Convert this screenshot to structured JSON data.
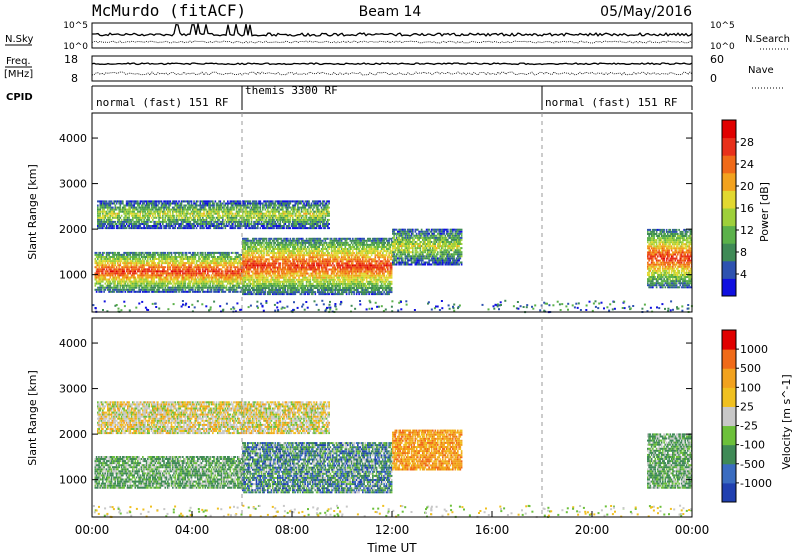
{
  "header": {
    "station": "McMurdo (fitACF)",
    "beam": "Beam 14",
    "date": "05/May/2016"
  },
  "strip": {
    "nsky_label": "N.Sky",
    "nsky_ticks": [
      "10^5",
      "10^0"
    ],
    "nsearch_label": "N.Search",
    "nsearch_ticks": [
      "10^5",
      "10^0"
    ],
    "freq_label": "Freq.",
    "freq_unit": "[MHz]",
    "freq_ticks": [
      "18",
      "8"
    ],
    "nave_label": "Nave",
    "nave_ticks": [
      "60",
      "0"
    ],
    "cpid_label": "CPID",
    "cpid_modes": [
      {
        "label": "normal (fast) 151 RF",
        "start_hour": 0,
        "end_hour": 6
      },
      {
        "label": "themis 3300 RF",
        "start_hour": 6,
        "end_hour": 18
      },
      {
        "label": "normal (fast) 151 RF",
        "start_hour": 18,
        "end_hour": 24
      }
    ]
  },
  "chart_data": [
    {
      "type": "heatmap",
      "title": "",
      "xlabel": "",
      "ylabel": "Slant Range [km]",
      "xlim": [
        0,
        24
      ],
      "ylim": [
        180,
        4550
      ],
      "yticks": [
        "1000",
        "2000",
        "3000",
        "4000"
      ],
      "colorbar": {
        "label": "Power [dB]",
        "ticks": [
          "4",
          "8",
          "12",
          "16",
          "20",
          "24",
          "28"
        ],
        "range": [
          0,
          30
        ],
        "colors": [
          "#1010e0",
          "#2e52b0",
          "#3f8a56",
          "#5bb14a",
          "#9ed03a",
          "#e2d830",
          "#f2a21e",
          "#f06a18",
          "#e8301a",
          "#e00000"
        ]
      },
      "regions": [
        {
          "t0": 0.1,
          "t1": 6.0,
          "r0": 600,
          "r1": 1500,
          "level": "strong"
        },
        {
          "t0": 6.0,
          "t1": 12.0,
          "r0": 550,
          "r1": 1800,
          "level": "strong"
        },
        {
          "t0": 0.2,
          "t1": 9.5,
          "r0": 2000,
          "r1": 2600,
          "level": "medium"
        },
        {
          "t0": 12.0,
          "t1": 14.8,
          "r0": 1200,
          "r1": 2000,
          "level": "medium"
        },
        {
          "t0": 22.2,
          "t1": 24.0,
          "r0": 700,
          "r1": 2000,
          "level": "strong"
        }
      ]
    },
    {
      "type": "heatmap",
      "title": "",
      "xlabel": "Time UT",
      "ylabel": "Slant Range [km]",
      "xlim": [
        0,
        24
      ],
      "ylim": [
        180,
        4550
      ],
      "xticks": [
        "00:00",
        "04:00",
        "08:00",
        "12:00",
        "16:00",
        "20:00",
        "00:00"
      ],
      "yticks": [
        "1000",
        "2000",
        "3000",
        "4000"
      ],
      "colorbar": {
        "label": "Velocity [m s^-1]",
        "ticks": [
          "1000",
          "500",
          "100",
          "25",
          "-25",
          "-100",
          "-500",
          "-1000"
        ],
        "colors": [
          "#2040b0",
          "#3a6cc0",
          "#3f8a56",
          "#6cc03a",
          "#c8c8c8",
          "#f0c020",
          "#f2a21e",
          "#f06a18",
          "#e00000"
        ]
      },
      "regions": [
        {
          "t0": 0.1,
          "t1": 6.0,
          "r0": 800,
          "r1": 1500,
          "level": "green"
        },
        {
          "t0": 6.0,
          "t1": 12.0,
          "r0": 700,
          "r1": 1800,
          "level": "mixed"
        },
        {
          "t0": 0.2,
          "t1": 9.5,
          "r0": 2000,
          "r1": 2700,
          "level": "grey"
        },
        {
          "t0": 12.0,
          "t1": 14.8,
          "r0": 1200,
          "r1": 2100,
          "level": "orange"
        },
        {
          "t0": 22.2,
          "t1": 24.0,
          "r0": 800,
          "r1": 2000,
          "level": "green"
        }
      ]
    }
  ]
}
